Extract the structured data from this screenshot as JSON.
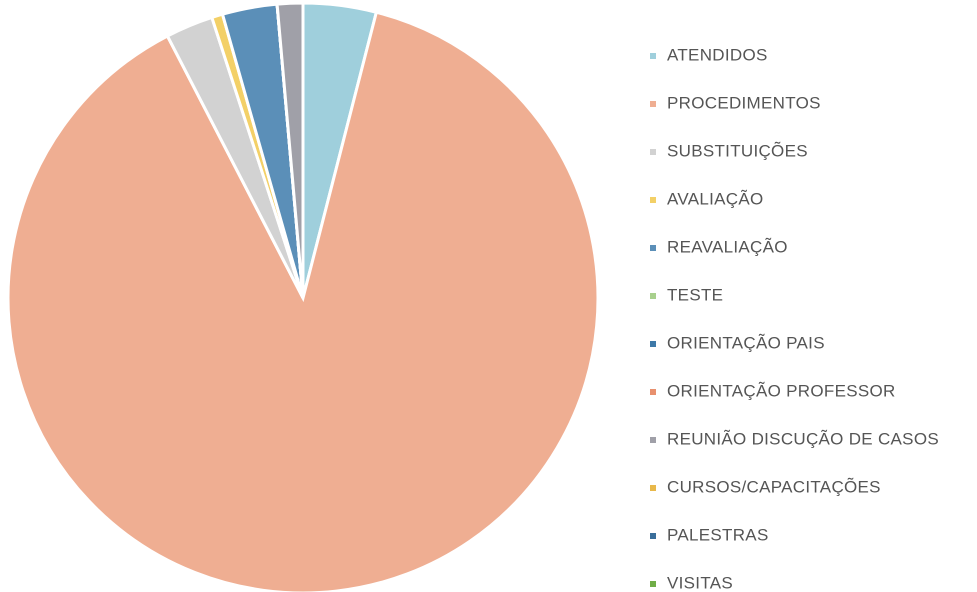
{
  "chart_data": {
    "type": "pie",
    "categories": [
      "ATENDIDOS",
      "PROCEDIMENTOS",
      "SUBSTITUIÇÕES",
      "AVALIAÇÃO",
      "REAVALIAÇÃO",
      "TESTE",
      "ORIENTAÇÃO PAIS",
      "ORIENTAÇÃO PROFESSOR",
      "REUNIÃO DISCUÇÃO DE CASOS",
      "CURSOS/CAPACITAÇÕES",
      "PALESTRAS",
      "VISITAS"
    ],
    "values": [
      4,
      88.4,
      2.6,
      0.6,
      3,
      0,
      0,
      0,
      1.4,
      0,
      0,
      0
    ],
    "colors": [
      "#9fcfdc",
      "#efae92",
      "#d2d2d2",
      "#f3d067",
      "#5b8fb8",
      "#a8d08d",
      "#3e79a8",
      "#e8906e",
      "#a0a0a8",
      "#e8b84a",
      "#3a6e9a",
      "#70ad47"
    ],
    "legend": "right"
  }
}
